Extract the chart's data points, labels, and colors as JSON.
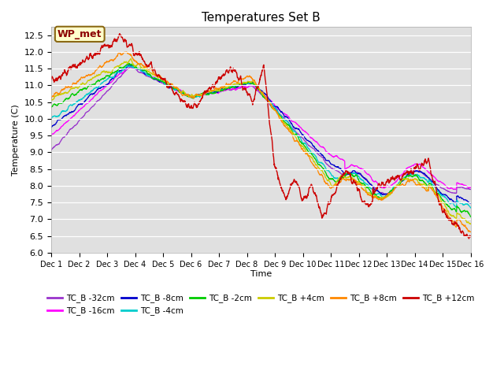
{
  "title": "Temperatures Set B",
  "xlabel": "Time",
  "ylabel": "Temperature (C)",
  "ylim": [
    6.0,
    12.75
  ],
  "xlim": [
    0,
    15
  ],
  "yticks": [
    6.0,
    6.5,
    7.0,
    7.5,
    8.0,
    8.5,
    9.0,
    9.5,
    10.0,
    10.5,
    11.0,
    11.5,
    12.0,
    12.5
  ],
  "xtick_labels": [
    "Dec 1",
    "Dec 2",
    "Dec 3",
    "Dec 4",
    "Dec 5",
    "Dec 6",
    "Dec 7",
    "Dec 8",
    "Dec 9",
    "Dec 10",
    "Dec 11",
    "Dec 12",
    "Dec 13",
    "Dec 14",
    "Dec 15",
    "Dec 16"
  ],
  "wp_met_label": "WP_met",
  "series": [
    {
      "label": "TC_B -32cm",
      "color": "#9933cc",
      "start": 9.05,
      "peak1": 11.55,
      "peak1_t": 2.8,
      "trough1": 10.65,
      "trough1_t": 5.0,
      "peak2": 11.0,
      "peak2_t": 7.2,
      "drop_end": 8.1,
      "drop_t": 10.5,
      "mid": 8.1,
      "final": 7.9,
      "amp": 0.06
    },
    {
      "label": "TC_B -16cm",
      "color": "#ff00ff",
      "start": 9.5,
      "peak1": 11.6,
      "peak1_t": 2.8,
      "trough1": 10.65,
      "trough1_t": 5.0,
      "peak2": 11.0,
      "peak2_t": 7.2,
      "drop_end": 8.55,
      "drop_t": 10.5,
      "mid": 8.3,
      "final": 7.95,
      "amp": 0.07
    },
    {
      "label": "TC_B -8cm",
      "color": "#0000cc",
      "start": 9.75,
      "peak1": 11.6,
      "peak1_t": 2.8,
      "trough1": 10.65,
      "trough1_t": 5.0,
      "peak2": 11.1,
      "peak2_t": 7.2,
      "drop_end": 8.2,
      "drop_t": 10.5,
      "mid": 8.1,
      "final": 7.5,
      "amp": 0.09
    },
    {
      "label": "TC_B -4cm",
      "color": "#00cccc",
      "start": 10.0,
      "peak1": 11.6,
      "peak1_t": 2.8,
      "trough1": 10.65,
      "trough1_t": 5.0,
      "peak2": 11.1,
      "peak2_t": 7.2,
      "drop_end": 8.05,
      "drop_t": 10.3,
      "mid": 8.05,
      "final": 7.35,
      "amp": 0.1
    },
    {
      "label": "TC_B -2cm",
      "color": "#00cc00",
      "start": 10.35,
      "peak1": 11.65,
      "peak1_t": 2.8,
      "trough1": 10.65,
      "trough1_t": 5.0,
      "peak2": 11.1,
      "peak2_t": 7.2,
      "drop_end": 8.0,
      "drop_t": 10.2,
      "mid": 8.0,
      "final": 7.1,
      "amp": 0.11
    },
    {
      "label": "TC_B +4cm",
      "color": "#cccc00",
      "start": 10.6,
      "peak1": 11.75,
      "peak1_t": 2.8,
      "trough1": 10.65,
      "trough1_t": 5.0,
      "peak2": 11.15,
      "peak2_t": 7.2,
      "drop_end": 7.95,
      "drop_t": 10.1,
      "mid": 7.95,
      "final": 6.85,
      "amp": 0.12
    },
    {
      "label": "TC_B +8cm",
      "color": "#ff8800",
      "start": 10.6,
      "peak1": 12.0,
      "peak1_t": 2.6,
      "trough1": 10.6,
      "trough1_t": 5.0,
      "peak2": 11.3,
      "peak2_t": 7.1,
      "drop_end": 7.9,
      "drop_t": 10.0,
      "mid": 7.9,
      "final": 6.6,
      "amp": 0.13
    },
    {
      "label": "TC_B +12cm",
      "color": "#cc0000",
      "start": 11.1,
      "peak1": 12.45,
      "peak1_t": 2.5,
      "trough1": 10.3,
      "trough1_t": 5.0,
      "peak2": 11.55,
      "peak2_t": 7.5,
      "drop_end": 7.55,
      "drop_t": 9.5,
      "mid": 7.55,
      "final": 6.45,
      "amp": 0.18
    }
  ]
}
